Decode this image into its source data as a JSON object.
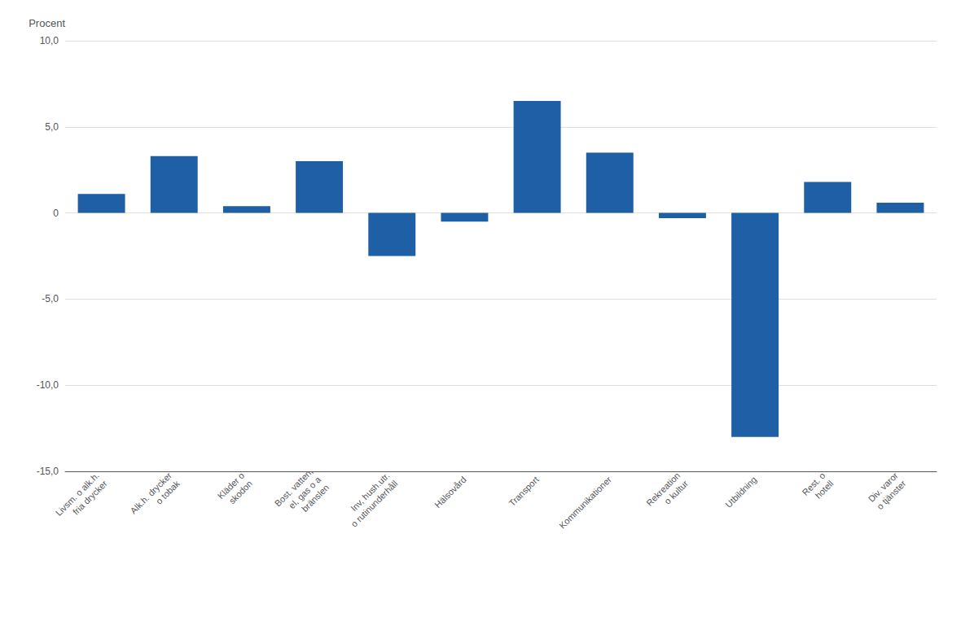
{
  "chart_data": {
    "type": "bar",
    "ylabel": "Procent",
    "categories": [
      "Livsm. o alk.h.\nfria drycker",
      "Alk.h. drycker\no tobak",
      "Kläder o\nskodon",
      "Bost. vatten,\nel, gas o a\nbränslen",
      "Inv, hush.utr.\no rutinunderhåll",
      "Hälsovård",
      "Transport",
      "Kommunikationer",
      "Rekreation\no kultur",
      "Utbildning",
      "Rest. o\nhotell",
      "Div. varor\no tjänster"
    ],
    "values": [
      1.1,
      3.3,
      0.4,
      3.0,
      -2.5,
      -0.5,
      6.5,
      3.5,
      -0.3,
      -13.0,
      1.8,
      0.6
    ],
    "color": "#1F5FA6",
    "ylim": [
      -15.0,
      10.0
    ],
    "yticks": [
      {
        "value": -15.0,
        "label": "-15,0"
      },
      {
        "value": -10.0,
        "label": "-10,0"
      },
      {
        "value": -5.0,
        "label": "-5,0"
      },
      0,
      {
        "value": 5.0,
        "label": "5,0"
      },
      {
        "value": 10.0,
        "label": "10,0"
      }
    ],
    "grid": true
  }
}
